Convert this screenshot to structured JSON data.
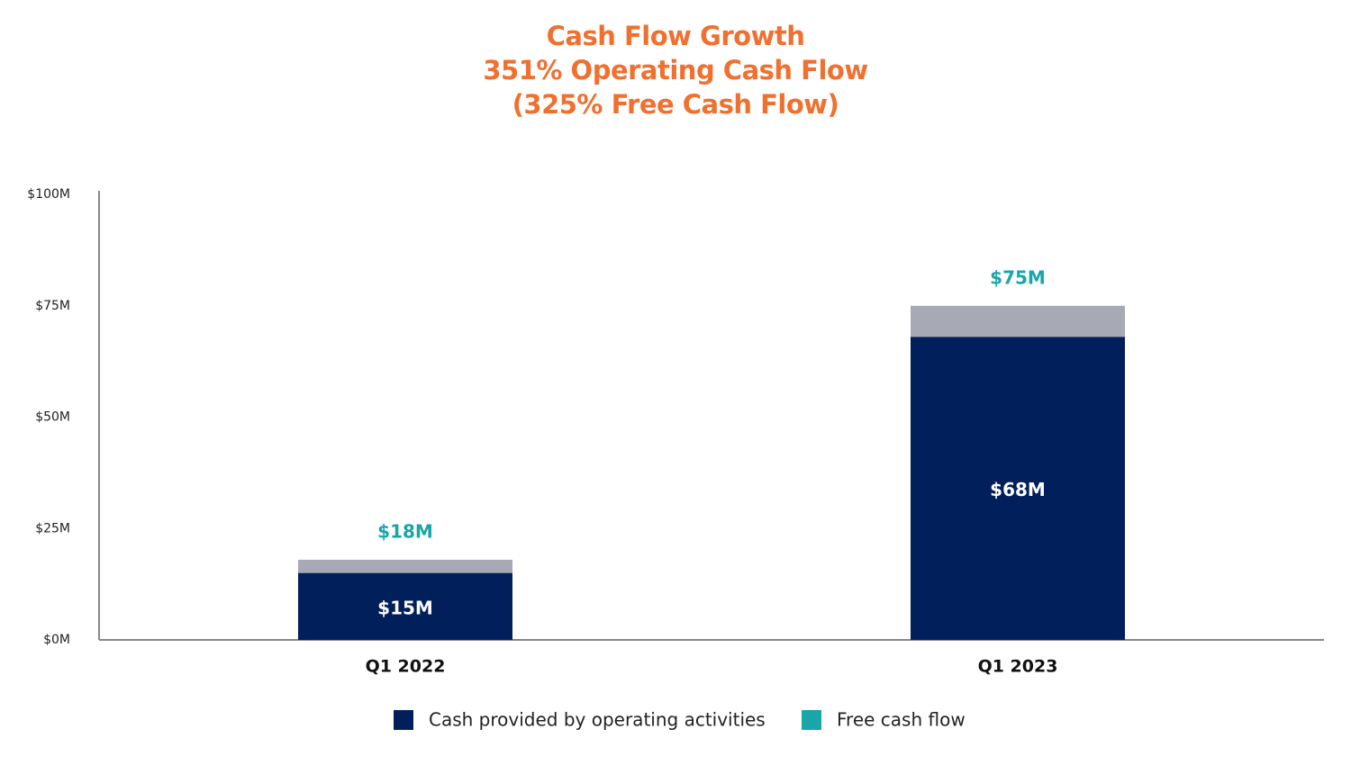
{
  "chart_data": {
    "type": "bar",
    "title": [
      "Cash Flow Growth",
      "351%  Operating Cash Flow",
      "(325% Free Cash Flow)"
    ],
    "title_color": "#f07030",
    "categories": [
      "Q1 2022",
      "Q1 2023"
    ],
    "series": [
      {
        "name": "Free cash flow",
        "color": "#1aa5a9",
        "bar_color": "#a7a9b4",
        "values": [
          18,
          75
        ],
        "value_labels": [
          "$18M",
          "$75M"
        ]
      },
      {
        "name": "Cash provided by operating activities",
        "color": "#001f5b",
        "values": [
          15,
          68
        ],
        "value_labels": [
          "$15M",
          "$68M"
        ]
      }
    ],
    "legend_order": [
      1,
      0
    ],
    "ylim": [
      0,
      100
    ],
    "yticks": [
      {
        "value": 0,
        "label": "$0M"
      },
      {
        "value": 25,
        "label": "$25M"
      },
      {
        "value": 50,
        "label": "$50M"
      },
      {
        "value": 75,
        "label": "$75M"
      },
      {
        "value": 100,
        "label": "$100M"
      }
    ],
    "grid": false
  }
}
